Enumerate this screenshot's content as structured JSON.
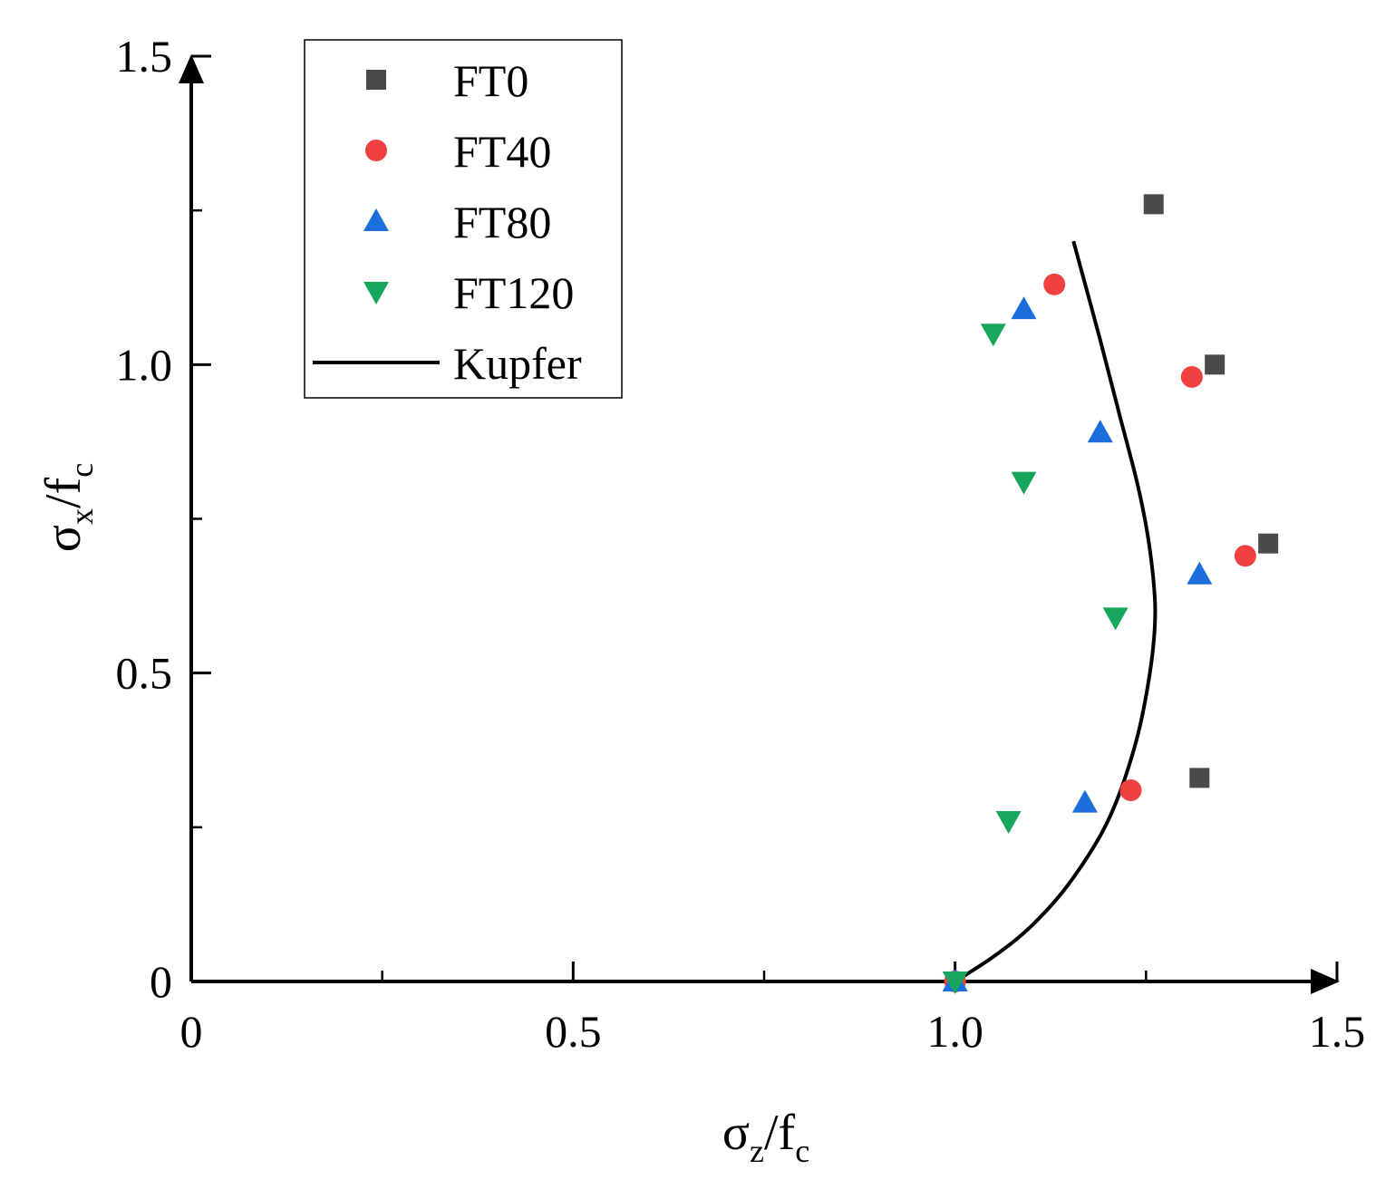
{
  "chart_data": {
    "type": "scatter",
    "title": "",
    "xlabel": {
      "main": "σ",
      "sub1": "z",
      "mid": "/f",
      "sub2": "c"
    },
    "ylabel": {
      "main": "σ",
      "sub1": "x",
      "mid": "/f",
      "sub2": "c"
    },
    "xlim": [
      0,
      1.5
    ],
    "ylim": [
      0,
      1.5
    ],
    "x_ticks": [
      {
        "value": 0,
        "label": "0"
      },
      {
        "value": 0.5,
        "label": "0.5"
      },
      {
        "value": 1.0,
        "label": "1.0"
      },
      {
        "value": 1.5,
        "label": "1.5"
      }
    ],
    "x_minor_ticks": [
      0.25,
      0.75,
      1.25
    ],
    "y_ticks": [
      {
        "value": 0,
        "label": "0"
      },
      {
        "value": 0.5,
        "label": "0.5"
      },
      {
        "value": 1.0,
        "label": "1.0"
      },
      {
        "value": 1.5,
        "label": "1.5"
      }
    ],
    "y_minor_ticks": [
      0.25,
      0.75,
      1.25
    ],
    "grid": false,
    "legend_position": "top-left",
    "series": [
      {
        "name": "FT0",
        "marker": "square",
        "color": "#4a4a4a",
        "points": [
          [
            1.0,
            0.0
          ],
          [
            1.26,
            1.26
          ],
          [
            1.34,
            1.0
          ],
          [
            1.41,
            0.71
          ],
          [
            1.32,
            0.33
          ]
        ]
      },
      {
        "name": "FT40",
        "marker": "circle",
        "color": "#f0403f",
        "points": [
          [
            1.0,
            0.0
          ],
          [
            1.13,
            1.13
          ],
          [
            1.31,
            0.98
          ],
          [
            1.38,
            0.69
          ],
          [
            1.23,
            0.31
          ]
        ]
      },
      {
        "name": "FT80",
        "marker": "triangle-up",
        "color": "#1a6fdc",
        "points": [
          [
            1.0,
            0.0
          ],
          [
            1.09,
            1.09
          ],
          [
            1.19,
            0.89
          ],
          [
            1.32,
            0.66
          ],
          [
            1.17,
            0.29
          ]
        ]
      },
      {
        "name": "FT120",
        "marker": "triangle-down",
        "color": "#18a55c",
        "points": [
          [
            1.0,
            0.0
          ],
          [
            1.05,
            1.05
          ],
          [
            1.09,
            0.81
          ],
          [
            1.21,
            0.59
          ],
          [
            1.07,
            0.26
          ]
        ]
      },
      {
        "name": "Kupfer",
        "marker": "line",
        "color": "#000000",
        "points": [
          [
            1.0,
            0.0
          ],
          [
            1.05,
            0.04
          ],
          [
            1.1,
            0.09
          ],
          [
            1.15,
            0.16
          ],
          [
            1.2,
            0.26
          ],
          [
            1.235,
            0.38
          ],
          [
            1.255,
            0.5
          ],
          [
            1.262,
            0.6
          ],
          [
            1.255,
            0.7
          ],
          [
            1.24,
            0.8
          ],
          [
            1.215,
            0.92
          ],
          [
            1.19,
            1.04
          ],
          [
            1.155,
            1.2
          ]
        ]
      }
    ]
  }
}
